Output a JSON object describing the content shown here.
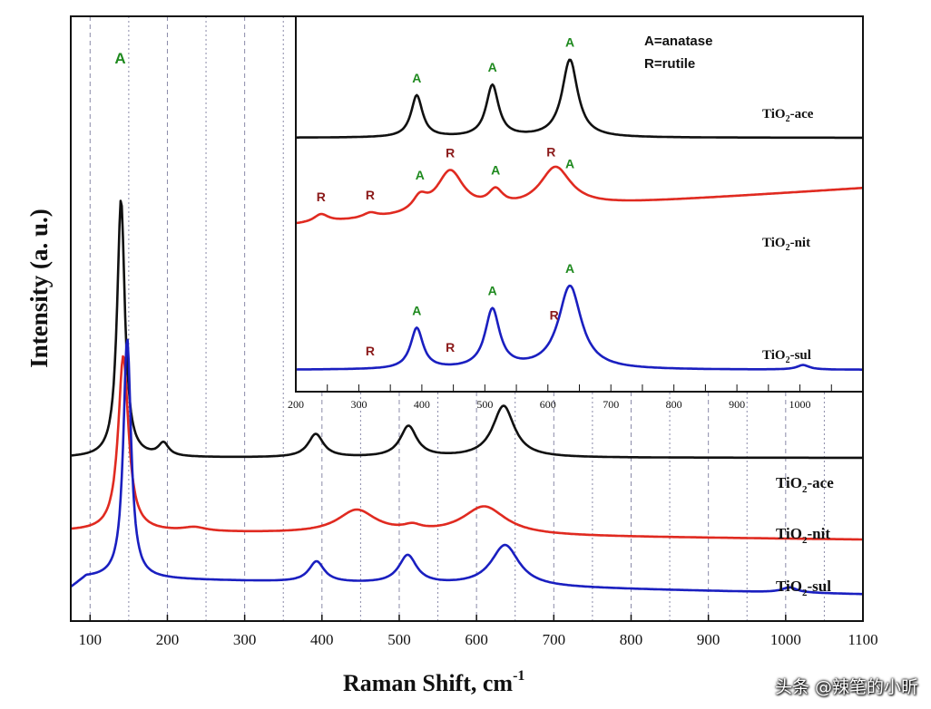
{
  "chart_data": [
    {
      "type": "line",
      "role": "main",
      "xlabel": "Raman Shift, cm",
      "xlabel_sup": "-1",
      "ylabel": "Intensity (a. u.)",
      "xlim": [
        75,
        1100
      ],
      "xticks": [
        100,
        200,
        300,
        400,
        500,
        600,
        700,
        800,
        900,
        1000,
        1100
      ],
      "dashed_guides": [
        100,
        150,
        200,
        250,
        300,
        350,
        400,
        450,
        500,
        550,
        600,
        650,
        700,
        750,
        800,
        850,
        900,
        950,
        1000,
        1050
      ],
      "peak_label": {
        "text": "A",
        "x": 140
      },
      "series": [
        {
          "name": "TiO2-ace",
          "sub": "2",
          "pre": "TiO",
          "post": "-ace",
          "color": "#111111",
          "offset": 0.6,
          "amp": 1.9,
          "peaks": [
            {
              "x": 140,
              "h": 1.0,
              "w": 6
            },
            {
              "x": 195,
              "h": 0.05,
              "w": 8
            },
            {
              "x": 392,
              "h": 0.09,
              "w": 12
            },
            {
              "x": 512,
              "h": 0.12,
              "w": 13
            },
            {
              "x": 635,
              "h": 0.2,
              "w": 17
            }
          ],
          "slope": 0.0
        },
        {
          "name": "TiO2-nit",
          "sub": "2",
          "pre": "TiO",
          "post": "-nit",
          "color": "#e02a20",
          "offset": 0.33,
          "amp": 1.9,
          "peaks": [
            {
              "x": 143,
              "h": 0.68,
              "w": 8
            },
            {
              "x": 235,
              "h": 0.015,
              "w": 18
            },
            {
              "x": 445,
              "h": 0.09,
              "w": 30
            },
            {
              "x": 517,
              "h": 0.02,
              "w": 14
            },
            {
              "x": 610,
              "h": 0.11,
              "w": 34
            }
          ],
          "slope": -3e-05
        },
        {
          "name": "TiO2-sul",
          "sub": "2",
          "pre": "TiO",
          "post": "-sul",
          "color": "#1a1fc0",
          "offset": 0.16,
          "amp": 1.9,
          "peaks": [
            {
              "x": 148,
              "h": 0.93,
              "w": 6
            },
            {
              "x": 393,
              "h": 0.08,
              "w": 12
            },
            {
              "x": 511,
              "h": 0.11,
              "w": 14
            },
            {
              "x": 637,
              "h": 0.16,
              "w": 22
            },
            {
              "x": 1005,
              "h": 0.02,
              "w": 12
            }
          ],
          "slope": -6e-05
        }
      ]
    },
    {
      "type": "line",
      "role": "inset",
      "xlim": [
        200,
        1100
      ],
      "xticks": [
        200,
        300,
        400,
        500,
        600,
        700,
        800,
        900,
        1000
      ],
      "legend": [
        "A=anatase",
        "R=rutile"
      ],
      "series": [
        {
          "name": "TiO2-ace",
          "pre": "TiO",
          "sub": "2",
          "post": "-ace",
          "color": "#111111",
          "peaks": [
            {
              "x": 392,
              "h": 0.42,
              "w": 11
            },
            {
              "x": 512,
              "h": 0.52,
              "w": 12
            },
            {
              "x": 635,
              "h": 0.78,
              "w": 15
            }
          ],
          "labels": [
            {
              "t": "A",
              "x": 392
            },
            {
              "t": "A",
              "x": 512
            },
            {
              "t": "A",
              "x": 635
            }
          ]
        },
        {
          "name": "TiO2-nit",
          "pre": "TiO",
          "sub": "2",
          "post": "-nit",
          "color": "#e02a20",
          "peaks": [
            {
              "x": 240,
              "h": 0.08,
              "w": 14
            },
            {
              "x": 318,
              "h": 0.05,
              "w": 14
            },
            {
              "x": 397,
              "h": 0.14,
              "w": 14
            },
            {
              "x": 445,
              "h": 0.42,
              "w": 26
            },
            {
              "x": 517,
              "h": 0.16,
              "w": 14
            },
            {
              "x": 612,
              "h": 0.4,
              "w": 30
            }
          ],
          "labels": [
            {
              "t": "R",
              "x": 240
            },
            {
              "t": "R",
              "x": 318
            },
            {
              "t": "A",
              "x": 397
            },
            {
              "t": "R",
              "x": 445
            },
            {
              "t": "A",
              "x": 517
            },
            {
              "t": "R",
              "x": 605
            },
            {
              "t": "A",
              "x": 635
            }
          ]
        },
        {
          "name": "TiO2-sul",
          "pre": "TiO",
          "sub": "2",
          "post": "-sul",
          "color": "#1a1fc0",
          "peaks": [
            {
              "x": 392,
              "h": 0.45,
              "w": 12
            },
            {
              "x": 512,
              "h": 0.65,
              "w": 14
            },
            {
              "x": 635,
              "h": 0.92,
              "w": 22
            },
            {
              "x": 1005,
              "h": 0.05,
              "w": 12
            }
          ],
          "labels": [
            {
              "t": "R",
              "x": 318
            },
            {
              "t": "A",
              "x": 392
            },
            {
              "t": "R",
              "x": 445
            },
            {
              "t": "A",
              "x": 512
            },
            {
              "t": "R",
              "x": 610
            },
            {
              "t": "A",
              "x": 635
            }
          ]
        }
      ]
    }
  ],
  "colors": {
    "anatase_label": "#1f8a1f",
    "rutile_label": "#8b1a1a"
  },
  "watermark": "头条 @辣笔的小昕"
}
